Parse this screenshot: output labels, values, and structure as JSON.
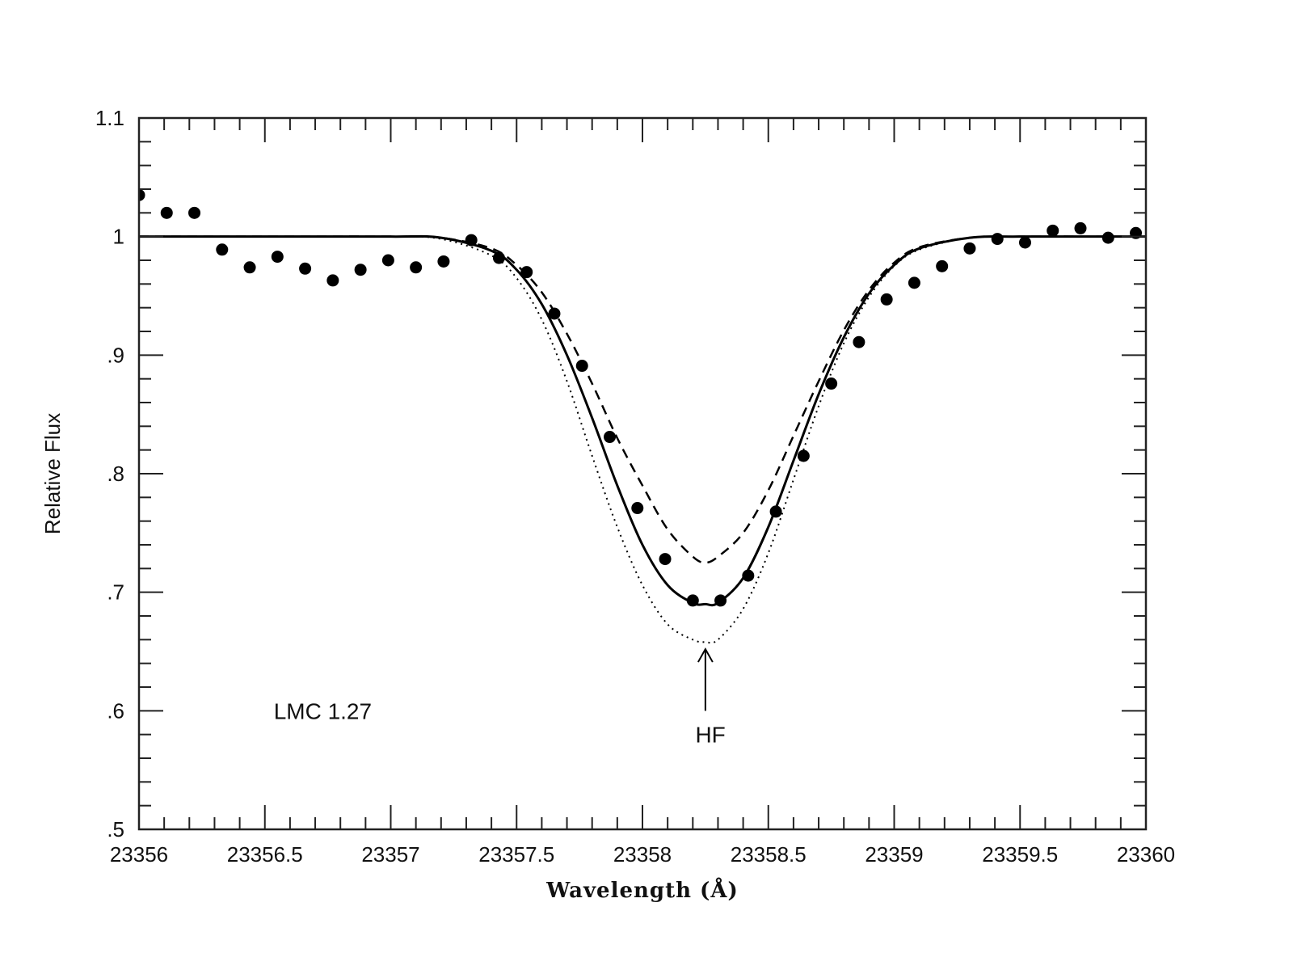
{
  "chart_data": {
    "type": "scatter",
    "xlabel": "Wavelength (Å)",
    "ylabel": "Relative Flux",
    "xlim": [
      23356,
      23360
    ],
    "ylim": [
      0.5,
      1.1
    ],
    "x_ticks": [
      {
        "value": 23356,
        "label": "23356"
      },
      {
        "value": 23356.5,
        "label": "23356.5"
      },
      {
        "value": 23357,
        "label": "23357"
      },
      {
        "value": 23357.5,
        "label": "23357.5"
      },
      {
        "value": 23358,
        "label": "23358"
      },
      {
        "value": 23358.5,
        "label": "23358.5"
      },
      {
        "value": 23359,
        "label": "23359"
      },
      {
        "value": 23359.5,
        "label": "23359.5"
      },
      {
        "value": 23360,
        "label": "23360"
      }
    ],
    "y_ticks": [
      {
        "value": 0.5,
        "label": ".5"
      },
      {
        "value": 0.6,
        "label": ".6"
      },
      {
        "value": 0.7,
        "label": ".7"
      },
      {
        "value": 0.8,
        "label": ".8"
      },
      {
        "value": 0.9,
        "label": ".9"
      },
      {
        "value": 1.0,
        "label": "1"
      },
      {
        "value": 1.1,
        "label": "1.1"
      }
    ],
    "grid": false,
    "series": [
      {
        "style": "filled-circles",
        "x": [
          23356.0,
          23356.11,
          23356.22,
          23356.33,
          23356.44,
          23356.55,
          23356.66,
          23356.77,
          23356.88,
          23356.99,
          23357.1,
          23357.21,
          23357.32,
          23357.43,
          23357.54,
          23357.65,
          23357.76,
          23357.87,
          23357.98,
          23358.09,
          23358.2,
          23358.31,
          23358.42,
          23358.53,
          23358.64,
          23358.75,
          23358.86,
          23358.97,
          23359.08,
          23359.19,
          23359.3,
          23359.41,
          23359.52,
          23359.63,
          23359.74,
          23359.85,
          23359.96
        ],
        "y": [
          1.035,
          1.02,
          1.02,
          0.989,
          0.974,
          0.983,
          0.973,
          0.963,
          0.972,
          0.98,
          0.974,
          0.979,
          0.997,
          0.982,
          0.97,
          0.935,
          0.891,
          0.831,
          0.771,
          0.728,
          0.693,
          0.693,
          0.714,
          0.768,
          0.815,
          0.876,
          0.911,
          0.947,
          0.961,
          0.975,
          0.99,
          0.998,
          0.995,
          1.005,
          1.007,
          0.999,
          1.003
        ]
      },
      {
        "style": "solid-line",
        "x": [
          23356,
          23356.5,
          23357,
          23357.2,
          23357.4,
          23357.5,
          23357.6,
          23357.7,
          23357.8,
          23357.9,
          23358,
          23358.1,
          23358.2,
          23358.25,
          23358.3,
          23358.4,
          23358.5,
          23358.6,
          23358.7,
          23358.8,
          23358.9,
          23359,
          23359.1,
          23359.3,
          23359.5,
          23360
        ],
        "y": [
          1.0,
          1.0,
          1.0,
          0.999,
          0.988,
          0.972,
          0.943,
          0.9,
          0.847,
          0.79,
          0.74,
          0.706,
          0.691,
          0.69,
          0.691,
          0.712,
          0.755,
          0.811,
          0.867,
          0.915,
          0.952,
          0.976,
          0.99,
          0.999,
          1.0,
          1.0
        ]
      },
      {
        "style": "dashed-line",
        "x": [
          23356,
          23356.5,
          23357,
          23357.2,
          23357.4,
          23357.5,
          23357.6,
          23357.7,
          23357.8,
          23357.9,
          23358,
          23358.1,
          23358.2,
          23358.25,
          23358.3,
          23358.4,
          23358.5,
          23358.6,
          23358.7,
          23358.8,
          23358.9,
          23359,
          23359.1,
          23359.3,
          23359.5,
          23360
        ],
        "y": [
          1.0,
          1.0,
          1.0,
          0.999,
          0.99,
          0.976,
          0.953,
          0.918,
          0.876,
          0.83,
          0.79,
          0.753,
          0.73,
          0.725,
          0.73,
          0.75,
          0.786,
          0.832,
          0.878,
          0.921,
          0.955,
          0.978,
          0.991,
          0.999,
          1.0,
          1.0
        ]
      },
      {
        "style": "dotted-line",
        "x": [
          23356,
          23356.5,
          23357,
          23357.2,
          23357.4,
          23357.5,
          23357.6,
          23357.7,
          23357.8,
          23357.9,
          23358,
          23358.1,
          23358.2,
          23358.25,
          23358.3,
          23358.4,
          23358.5,
          23358.6,
          23358.7,
          23358.8,
          23358.9,
          23359,
          23359.1,
          23359.3,
          23359.5,
          23360
        ],
        "y": [
          1.0,
          1.0,
          1.0,
          0.998,
          0.984,
          0.965,
          0.93,
          0.878,
          0.815,
          0.755,
          0.706,
          0.673,
          0.66,
          0.658,
          0.66,
          0.686,
          0.733,
          0.795,
          0.857,
          0.91,
          0.949,
          0.975,
          0.989,
          0.999,
          1.0,
          1.0
        ]
      }
    ],
    "annotations": [
      {
        "text": "LMC 1.27",
        "x": 23356.73,
        "y": 0.6
      },
      {
        "text": "HF",
        "x": 23358.27,
        "y": 0.58,
        "arrow_to": [
          23358.25,
          0.652
        ],
        "arrow_from": [
          23358.25,
          0.6
        ]
      }
    ]
  }
}
